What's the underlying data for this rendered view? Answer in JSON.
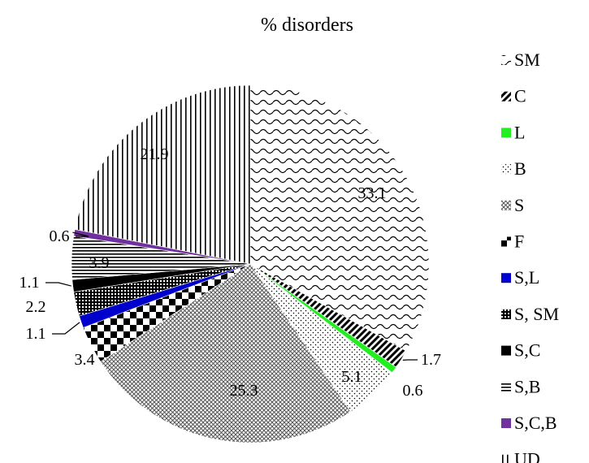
{
  "chart_data": {
    "type": "pie",
    "title": "% disorders",
    "legend_position": "right",
    "categories": [
      "SM",
      "C",
      "L",
      "B",
      "S",
      "F",
      "S,L",
      "S, SM",
      "S,C",
      "S,B",
      "S,C,B",
      "UD"
    ],
    "values": [
      33.1,
      1.7,
      0.6,
      5.1,
      25.3,
      3.4,
      1.1,
      2.2,
      1.1,
      3.9,
      0.6,
      21.9
    ],
    "value_labels": [
      "33.1",
      "1.7",
      "0.6",
      "5.1",
      "25.3",
      "3.4",
      "1.1",
      "2.2",
      "1.1",
      "3.9",
      "0.6",
      "21.9"
    ],
    "colors": [
      "#000000",
      "#000000",
      "#22ee22",
      "#000000",
      "#000000",
      "#000000",
      "#0000cc",
      "#000000",
      "#000000",
      "#000000",
      "#7030a0",
      "#000000"
    ],
    "patterns": [
      "wave",
      "diagonal",
      "solid",
      "dots",
      "crosshatch",
      "checker",
      "solid",
      "grid",
      "solid",
      "horizontal",
      "solid",
      "vertical"
    ]
  }
}
